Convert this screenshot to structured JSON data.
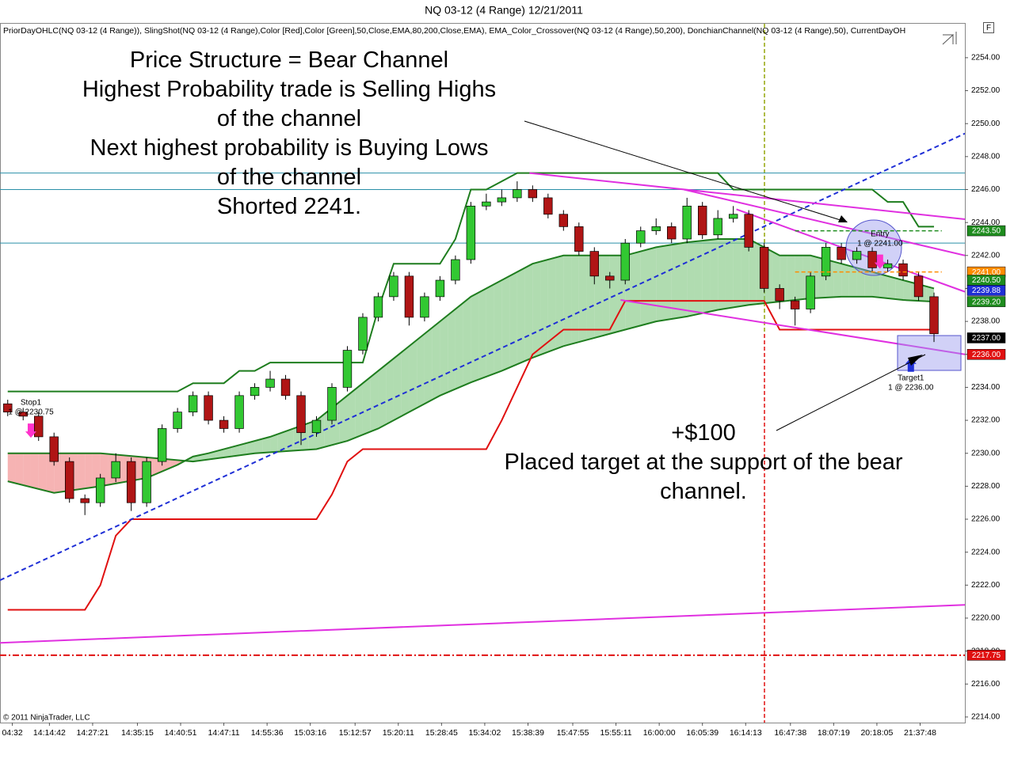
{
  "chart_data": {
    "type": "candlestick",
    "title": "NQ 03-12 (4 Range)  12/21/2011",
    "indicators": "PriorDayOHLC(NQ 03-12 (4 Range)), SlingShot(NQ 03-12 (4 Range),Color [Red],Color [Green],50,Close,EMA,80,200,Close,EMA), EMA_Color_Crossover(NQ 03-12 (4 Range),50,200), DonchianChannel(NQ 03-12 (4 Range),50), CurrentDayOH",
    "copyright": "© 2011 NinjaTrader, LLC",
    "panel_button": "F",
    "annotations": {
      "top": [
        "Price Structure = Bear Channel",
        "Highest Probability trade is Selling Highs",
        "of the channel",
        "Next highest probability is Buying Lows",
        "of the channel",
        "Shorted 2241."
      ],
      "bottom": [
        "+$100",
        "Placed target at the support of the bear",
        "channel."
      ]
    },
    "xlim": [
      -0.5,
      62
    ],
    "ylim": [
      2213.66,
      2256.06
    ],
    "xticks": [
      {
        "value": 0.3,
        "label": "04:32"
      },
      {
        "value": 2.7,
        "label": "14:14:42"
      },
      {
        "value": 5.5,
        "label": "14:27:21"
      },
      {
        "value": 8.4,
        "label": "14:35:15"
      },
      {
        "value": 11.2,
        "label": "14:40:51"
      },
      {
        "value": 14.0,
        "label": "14:47:11"
      },
      {
        "value": 16.8,
        "label": "14:55:36"
      },
      {
        "value": 19.6,
        "label": "15:03:16"
      },
      {
        "value": 22.5,
        "label": "15:12:57"
      },
      {
        "value": 25.3,
        "label": "15:20:11"
      },
      {
        "value": 28.1,
        "label": "15:28:45"
      },
      {
        "value": 30.9,
        "label": "15:34:02"
      },
      {
        "value": 33.7,
        "label": "15:38:39"
      },
      {
        "value": 36.6,
        "label": "15:47:55"
      },
      {
        "value": 39.4,
        "label": "15:55:11"
      },
      {
        "value": 42.2,
        "label": "16:00:00"
      },
      {
        "value": 45.0,
        "label": "16:05:39"
      },
      {
        "value": 47.8,
        "label": "16:14:13"
      },
      {
        "value": 50.7,
        "label": "16:47:38"
      },
      {
        "value": 53.5,
        "label": "18:07:19"
      },
      {
        "value": 56.3,
        "label": "20:18:05"
      },
      {
        "value": 59.1,
        "label": "21:37:48"
      }
    ],
    "yticks": [
      {
        "value": 2214,
        "label": "2214.00"
      },
      {
        "value": 2216,
        "label": "2216.00"
      },
      {
        "value": 2218,
        "label": "2218.00"
      },
      {
        "value": 2220,
        "label": "2220.00"
      },
      {
        "value": 2222,
        "label": "2222.00"
      },
      {
        "value": 2224,
        "label": "2224.00"
      },
      {
        "value": 2226,
        "label": "2226.00"
      },
      {
        "value": 2228,
        "label": "2228.00"
      },
      {
        "value": 2230,
        "label": "2230.00"
      },
      {
        "value": 2232,
        "label": "2232.00"
      },
      {
        "value": 2234,
        "label": "2234.00"
      },
      {
        "value": 2236,
        "label": "2236.00"
      },
      {
        "value": 2238,
        "label": "2238.00"
      },
      {
        "value": 2240,
        "label": "2240.00"
      },
      {
        "value": 2242,
        "label": "2242.00"
      },
      {
        "value": 2244,
        "label": "2244.00"
      },
      {
        "value": 2246,
        "label": "2246.00"
      },
      {
        "value": 2248,
        "label": "2248.00"
      },
      {
        "value": 2250,
        "label": "2250.00"
      },
      {
        "value": 2252,
        "label": "2252.00"
      },
      {
        "value": 2254,
        "label": "2254.00"
      }
    ],
    "up_color": "#32c832",
    "down_color": "#b01515",
    "x": [
      0,
      1,
      2,
      3,
      4,
      5,
      6,
      7,
      8,
      9,
      10,
      11,
      12,
      13,
      14,
      15,
      16,
      17,
      18,
      19,
      20,
      21,
      22,
      23,
      24,
      25,
      26,
      27,
      28,
      29,
      30,
      31,
      32,
      33,
      34,
      35,
      36,
      37,
      38,
      39,
      40,
      41,
      42,
      43,
      44,
      45,
      46,
      47,
      48,
      49,
      50,
      51,
      52,
      53,
      54,
      55,
      56,
      57,
      58,
      59,
      60
    ],
    "open": [
      2233,
      2232.5,
      2232.25,
      2231,
      2229.5,
      2227.25,
      2227,
      2228.5,
      2229.5,
      2227,
      2229.5,
      2231.5,
      2232.5,
      2233.5,
      2232,
      2231.5,
      2233.5,
      2234,
      2234.5,
      2233.5,
      2231.25,
      2232,
      2234,
      2236.25,
      2238.25,
      2239.5,
      2240.75,
      2238.25,
      2239.5,
      2240.5,
      2241.75,
      2245,
      2245.25,
      2245.5,
      2246,
      2245.5,
      2244.5,
      2243.75,
      2242.25,
      2240.75,
      2240.5,
      2242.75,
      2243.5,
      2243.75,
      2243,
      2245,
      2243.25,
      2244.25,
      2244.5,
      2242.5,
      2240,
      2239.25,
      2238.75,
      2240.75,
      2242.5,
      2241.75,
      2242.25,
      2241.25,
      2241.5,
      2240.75,
      2239.5
    ],
    "high": [
      2233.25,
      2232.75,
      2232.5,
      2231.25,
      2229.75,
      2227.5,
      2228.75,
      2230,
      2229.75,
      2229.75,
      2231.75,
      2232.75,
      2233.75,
      2233.75,
      2232.25,
      2233.75,
      2234.25,
      2235,
      2234.75,
      2233.75,
      2232.25,
      2234.25,
      2236.5,
      2238.5,
      2239.75,
      2241,
      2241,
      2239.75,
      2240.75,
      2242,
      2245.25,
      2245.75,
      2246,
      2246.5,
      2246.25,
      2245.75,
      2244.75,
      2244,
      2242.5,
      2241,
      2243,
      2243.75,
      2244.25,
      2244,
      2245.5,
      2245.25,
      2244.75,
      2245,
      2244.75,
      2242.75,
      2240.25,
      2239.5,
      2241,
      2242.75,
      2242.75,
      2242.5,
      2242.5,
      2241.75,
      2241.75,
      2241,
      2239.75
    ],
    "low": [
      2232.25,
      2232,
      2230.75,
      2229.25,
      2227,
      2226.25,
      2226.75,
      2228.25,
      2226.5,
      2226.75,
      2229.25,
      2231.25,
      2232.25,
      2231.75,
      2231.25,
      2231.25,
      2233.25,
      2233.75,
      2233.25,
      2230.5,
      2231,
      2231.75,
      2233.75,
      2236,
      2238,
      2239.25,
      2237.75,
      2238,
      2239.25,
      2240.25,
      2241.5,
      2244.75,
      2245,
      2245.25,
      2245.25,
      2244.25,
      2243.5,
      2242,
      2240.25,
      2240,
      2240.25,
      2242.5,
      2243.25,
      2242.75,
      2242.75,
      2243,
      2243,
      2244,
      2242.25,
      2239.75,
      2238.75,
      2237.75,
      2238.5,
      2240.5,
      2241.5,
      2241.5,
      2241,
      2241,
      2240.5,
      2239.25,
      2236.75
    ],
    "close": [
      2232.5,
      2232.25,
      2231,
      2229.5,
      2227.25,
      2227,
      2228.5,
      2229.5,
      2227,
      2229.5,
      2231.5,
      2232.5,
      2233.5,
      2232,
      2231.5,
      2233.5,
      2234,
      2234.5,
      2233.5,
      2231.25,
      2232,
      2234,
      2236.25,
      2238.25,
      2239.5,
      2240.75,
      2238.25,
      2239.5,
      2240.5,
      2241.75,
      2245,
      2245.25,
      2245.5,
      2246,
      2245.5,
      2244.5,
      2243.75,
      2242.25,
      2240.75,
      2240.5,
      2242.75,
      2243.5,
      2243.75,
      2243,
      2245,
      2243.25,
      2244.25,
      2244.5,
      2242.5,
      2240,
      2239.25,
      2238.75,
      2240.75,
      2242.5,
      2241.75,
      2242.25,
      2241.25,
      2241.5,
      2240.75,
      2239.5,
      2237.25
    ],
    "donchian": [
      {
        "color": "#1e7d1e",
        "values": [
          2233.75,
          2233.75,
          2233.75,
          2233.75,
          2233.75,
          2233.75,
          2233.75,
          2233.75,
          2233.75,
          2233.75,
          2233.75,
          2233.75,
          2234.25,
          2234.25,
          2234.25,
          2235,
          2235,
          2235.5,
          2235.5,
          2235.5,
          2235.5,
          2235.5,
          2235.5,
          2235.5,
          2238.75,
          2241.5,
          2241.5,
          2241.5,
          2241.5,
          2243,
          2246,
          2246,
          2246.5,
          2247,
          2247,
          2247,
          2247,
          2247,
          2247,
          2247,
          2247,
          2247,
          2247,
          2247,
          2247,
          2247,
          2247,
          2246,
          2246,
          2246,
          2246,
          2246,
          2246,
          2246,
          2246,
          2246,
          2246,
          2245.25,
          2245.25,
          2243.75,
          2243.75
        ]
      },
      {
        "color": "#e01010",
        "values": [
          2220.5,
          2220.5,
          2220.5,
          2220.5,
          2220.5,
          2220.5,
          2222,
          2225,
          2226,
          2226,
          2226,
          2226,
          2226,
          2226,
          2226,
          2226,
          2226,
          2226,
          2226,
          2226,
          2226,
          2227.5,
          2229.5,
          2230.25,
          2230.25,
          2230.25,
          2230.25,
          2230.25,
          2230.25,
          2230.25,
          2230.25,
          2230.25,
          2232,
          2234,
          2236,
          2236.75,
          2237.5,
          2237.5,
          2237.5,
          2237.5,
          2239.25,
          2239.25,
          2239.25,
          2239.25,
          2239.25,
          2239.25,
          2239.25,
          2239.25,
          2239.25,
          2239.25,
          2237.5,
          2237.5,
          2237.5,
          2237.5,
          2237.5,
          2237.5,
          2237.5,
          2237.5,
          2237.5,
          2237.5,
          2237.5
        ]
      }
    ],
    "ema_fast": {
      "color": "#1e7d1e",
      "x": [
        0,
        3,
        6,
        9,
        11,
        12,
        13,
        15,
        17,
        20,
        22,
        24,
        26,
        28,
        30,
        32,
        34,
        36,
        38,
        40,
        42,
        44,
        46,
        48,
        50,
        52,
        54,
        56,
        58,
        60
      ],
      "values": [
        2228.3,
        2227.6,
        2228,
        2228.5,
        2229.3,
        2229.8,
        2230,
        2230.5,
        2231,
        2232,
        2233.5,
        2235,
        2236.5,
        2238,
        2239.5,
        2240.5,
        2241.5,
        2242,
        2242,
        2242,
        2242.5,
        2242.8,
        2243,
        2243,
        2242,
        2242,
        2241.5,
        2241,
        2240.5,
        2240
      ]
    },
    "ema_slow": {
      "color": "#1e7d1e",
      "x": [
        0,
        6,
        12,
        16,
        20,
        22,
        24,
        26,
        28,
        30,
        32,
        34,
        36,
        38,
        40,
        42,
        44,
        46,
        48,
        50,
        52,
        54,
        56,
        58,
        60
      ],
      "values": [
        2230,
        2230,
        2229.5,
        2230,
        2230.25,
        2230.75,
        2231.5,
        2232.5,
        2233.5,
        2234.3,
        2235,
        2235.8,
        2236.5,
        2237,
        2237.5,
        2238,
        2238.3,
        2238.7,
        2239,
        2239.2,
        2239.4,
        2239.5,
        2239.5,
        2239.3,
        2239.2
      ]
    },
    "trendlines": [
      {
        "color": "#1f2fd6",
        "dashed": true,
        "x": [
          -0.5,
          62
        ],
        "values": [
          2222.3,
          2249.4
        ]
      },
      {
        "color": "#e030e0",
        "dashed": false,
        "x": [
          -0.5,
          62
        ],
        "values": [
          2218.5,
          2220.8
        ]
      },
      {
        "color": "#e030e0",
        "dashed": false,
        "x": [
          33.8,
          62
        ],
        "values": [
          2247,
          2244.2
        ]
      },
      {
        "color": "#e030e0",
        "dashed": false,
        "x": [
          43.8,
          62
        ],
        "values": [
          2246,
          2242
        ]
      },
      {
        "color": "#e030e0",
        "dashed": false,
        "x": [
          47.2,
          62
        ],
        "values": [
          2244.8,
          2239.8
        ]
      },
      {
        "color": "#e030e0",
        "dashed": false,
        "x": [
          39.7,
          62
        ],
        "values": [
          2239.3,
          2236
        ]
      }
    ],
    "levels": [
      {
        "value": 2247,
        "color": "#2a8fa8",
        "dashed": false
      },
      {
        "value": 2246,
        "color": "#2a8fa8",
        "dashed": false
      },
      {
        "value": 2242.75,
        "color": "#2a8fa8",
        "dashed": false
      },
      {
        "value": 2217.75,
        "color": "#e01010",
        "dashed": true
      }
    ],
    "orders": [
      {
        "name": "Stop1",
        "label": "1 @ 2230.75",
        "value": 2230.75
      },
      {
        "name": "Entry",
        "label": "1 @ 2241.00",
        "value": 2241
      },
      {
        "name": "Target1",
        "label": "1 @ 2236.00",
        "value": 2236
      }
    ],
    "price_markers": [
      {
        "value": 2243.5,
        "label": "2243.50",
        "color": "#1e8c1e"
      },
      {
        "value": 2241,
        "label": "2241.00",
        "color": "#ff8c00"
      },
      {
        "value": 2240.5,
        "label": "2240.50",
        "color": "#1e8c1e"
      },
      {
        "value": 2239.88,
        "label": "2239.88",
        "color": "#1f2fd6"
      },
      {
        "value": 2239.2,
        "label": "2239.20",
        "color": "#1e8c1e"
      },
      {
        "value": 2237,
        "label": "2237.00",
        "color": "#000000"
      },
      {
        "value": 2236,
        "label": "2236.00",
        "color": "#e01010"
      },
      {
        "value": 2217.75,
        "label": "2217.75",
        "color": "#e01010"
      }
    ]
  }
}
